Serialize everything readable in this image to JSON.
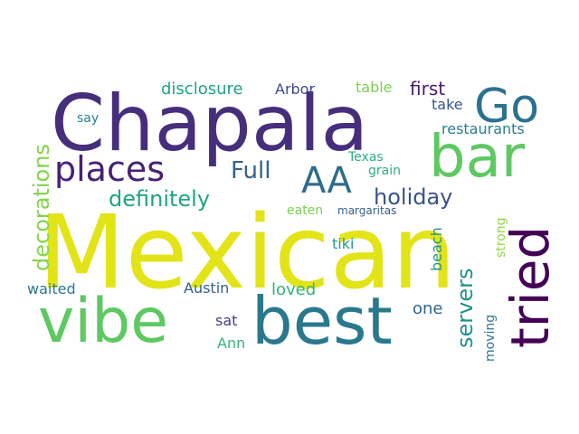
{
  "words": [
    {
      "text": "Mexican",
      "color": "#e2e418",
      "vertical": false
    },
    {
      "text": "Chapala",
      "color": "#472e7c",
      "vertical": false
    },
    {
      "text": "vibe",
      "color": "#5ec962",
      "vertical": false
    },
    {
      "text": "best",
      "color": "#2a788e",
      "vertical": false
    },
    {
      "text": "bar",
      "color": "#5ec962",
      "vertical": false
    },
    {
      "text": "tried",
      "color": "#440154",
      "vertical": true
    },
    {
      "text": "Go",
      "color": "#2c728e",
      "vertical": false
    },
    {
      "text": "places",
      "color": "#482173",
      "vertical": false
    },
    {
      "text": "AA",
      "color": "#2f6c8e",
      "vertical": false
    },
    {
      "text": "Full",
      "color": "#33638d",
      "vertical": false
    },
    {
      "text": "definitely",
      "color": "#20a386",
      "vertical": false
    },
    {
      "text": "decorations",
      "color": "#84d44b",
      "vertical": true
    },
    {
      "text": "holiday",
      "color": "#3b528b",
      "vertical": false
    },
    {
      "text": "servers",
      "color": "#21918c",
      "vertical": true
    },
    {
      "text": "disclosure",
      "color": "#20a386",
      "vertical": false
    },
    {
      "text": "Arbor",
      "color": "#3e4989",
      "vertical": false
    },
    {
      "text": "table",
      "color": "#7ad151",
      "vertical": false
    },
    {
      "text": "first",
      "color": "#481a6c",
      "vertical": false
    },
    {
      "text": "take",
      "color": "#39568c",
      "vertical": false
    },
    {
      "text": "restaurants",
      "color": "#287d8e",
      "vertical": false
    },
    {
      "text": "say",
      "color": "#25848e",
      "vertical": false
    },
    {
      "text": "Texas",
      "color": "#28ae80",
      "vertical": false
    },
    {
      "text": "grain",
      "color": "#2ab07f",
      "vertical": false
    },
    {
      "text": "eaten",
      "color": "#7ad151",
      "vertical": false
    },
    {
      "text": "margaritas",
      "color": "#355f8d",
      "vertical": false
    },
    {
      "text": "beach",
      "color": "#1f948c",
      "vertical": true
    },
    {
      "text": "strong",
      "color": "#8fd744",
      "vertical": true
    },
    {
      "text": "tiki",
      "color": "#1f9e89",
      "vertical": false
    },
    {
      "text": "waited",
      "color": "#2a788e",
      "vertical": false
    },
    {
      "text": "Austin",
      "color": "#33638d",
      "vertical": false
    },
    {
      "text": "loved",
      "color": "#2fb47c",
      "vertical": false
    },
    {
      "text": "one",
      "color": "#32658e",
      "vertical": false
    },
    {
      "text": "sat",
      "color": "#433e85",
      "vertical": false
    },
    {
      "text": "moving",
      "color": "#2a788e",
      "vertical": true
    },
    {
      "text": "Ann",
      "color": "#35b779",
      "vertical": false
    }
  ]
}
